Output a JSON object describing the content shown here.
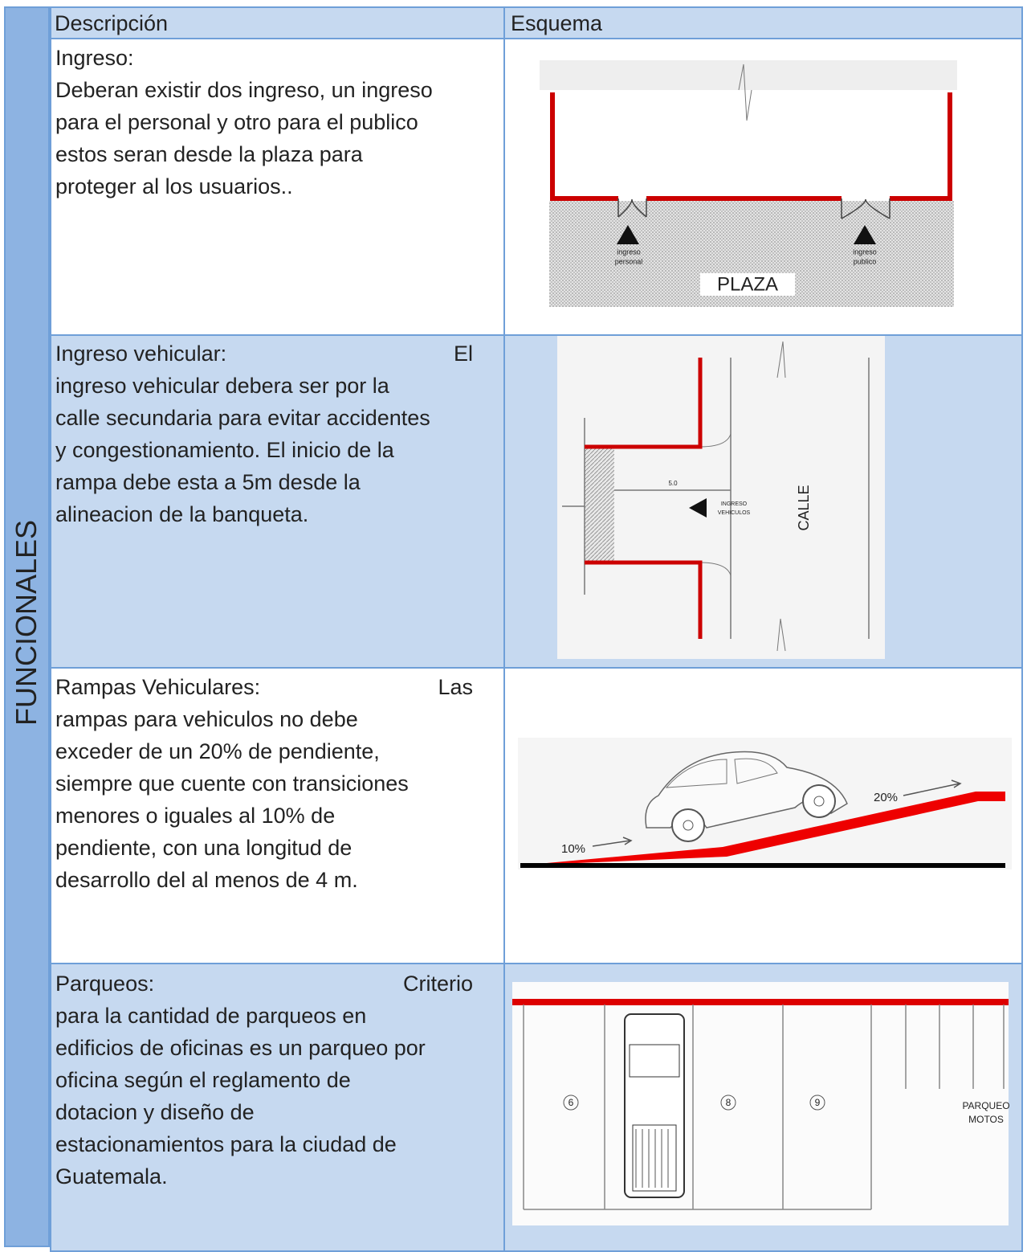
{
  "side_label": "FUNCIONALES",
  "table": {
    "headers": [
      "Descripción",
      "Esquema"
    ],
    "rows": [
      {
        "title": "Ingreso:",
        "lines": [
          "Deberan existir dos ingreso, un ingreso",
          "para el personal y otro para el publico",
          "estos seran desde la plaza para",
          "proteger al los usuarios.."
        ],
        "diagram": {
          "labels": [
            "ingreso",
            "personal",
            "ingreso",
            "publico",
            "PLAZA"
          ]
        }
      },
      {
        "title": "Ingreso vehicular:",
        "title_tail": "El",
        "lines": [
          "ingreso vehicular debera ser por la",
          "calle secundaria para evitar accidentes",
          "y congestionamiento. El inicio de la",
          "rampa debe esta a 5m desde la",
          "alineacion de la banqueta."
        ],
        "diagram": {
          "labels": [
            "5.0",
            "INGRESO",
            "VEHICULOS",
            "CALLE"
          ]
        }
      },
      {
        "title": "Rampas Vehiculares:",
        "title_tail": "Las",
        "lines": [
          "rampas para vehiculos no debe",
          "exceder de un 20% de pendiente,",
          "siempre que cuente con transiciones",
          "menores o iguales al 10% de",
          "pendiente, con una longitud de",
          "desarrollo del al menos de 4 m."
        ],
        "diagram": {
          "labels": [
            "10%",
            "20%"
          ]
        }
      },
      {
        "title": "Parqueos:",
        "title_tail": "Criterio",
        "lines": [
          "para la cantidad de parqueos en",
          "edificios de oficinas es un parqueo por",
          "oficina según el reglamento de",
          "dotacion y diseño de",
          "estacionamientos para la ciudad de",
          "Guatemala."
        ],
        "diagram": {
          "labels": [
            "6",
            "8",
            "9",
            "PARQUEO",
            "MOTOS"
          ]
        }
      }
    ]
  }
}
